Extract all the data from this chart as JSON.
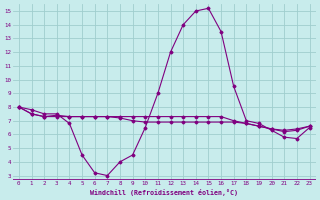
{
  "xlabel": "Windchill (Refroidissement éolien,°C)",
  "xlim": [
    -0.5,
    23.5
  ],
  "ylim": [
    2.7,
    15.5
  ],
  "yticks": [
    3,
    4,
    5,
    6,
    7,
    8,
    9,
    10,
    11,
    12,
    13,
    14,
    15
  ],
  "xticks": [
    0,
    1,
    2,
    3,
    4,
    5,
    6,
    7,
    8,
    9,
    10,
    11,
    12,
    13,
    14,
    15,
    16,
    17,
    18,
    19,
    20,
    21,
    22,
    23
  ],
  "bg_color": "#c8ecec",
  "line_color": "#800080",
  "grid_color": "#a0cece",
  "curve1_x": [
    0,
    1,
    2,
    3,
    4,
    5,
    6,
    7,
    8,
    9,
    10,
    11,
    12,
    13,
    14,
    15,
    16,
    17,
    18,
    19,
    20,
    21,
    22,
    23
  ],
  "curve1_y": [
    8.0,
    7.8,
    7.5,
    7.5,
    6.8,
    4.5,
    3.2,
    3.0,
    4.0,
    4.5,
    6.5,
    9.0,
    12.0,
    14.0,
    15.0,
    15.2,
    13.5,
    9.5,
    7.0,
    6.8,
    6.3,
    5.8,
    5.7,
    6.5
  ],
  "curve2_x": [
    0,
    1,
    2,
    3,
    4,
    5,
    6,
    7,
    8,
    9,
    10,
    11,
    12,
    13,
    14,
    15,
    16,
    17,
    18,
    19,
    20,
    21,
    22,
    23
  ],
  "curve2_y": [
    8.0,
    7.5,
    7.3,
    7.3,
    7.3,
    7.3,
    7.3,
    7.3,
    7.3,
    7.3,
    7.3,
    7.3,
    7.3,
    7.3,
    7.3,
    7.3,
    7.3,
    7.0,
    6.8,
    6.6,
    6.4,
    6.3,
    6.4,
    6.6
  ],
  "curve3_x": [
    0,
    1,
    2,
    3,
    4,
    5,
    6,
    7,
    8,
    9,
    10,
    11,
    12,
    13,
    14,
    15,
    16,
    17,
    18,
    19,
    20,
    21,
    22,
    23
  ],
  "curve3_y": [
    8.0,
    7.5,
    7.3,
    7.4,
    7.3,
    7.3,
    7.3,
    7.3,
    7.2,
    7.0,
    6.9,
    6.9,
    6.9,
    6.9,
    6.9,
    6.9,
    6.9,
    6.9,
    6.8,
    6.6,
    6.4,
    6.2,
    6.3,
    6.6
  ]
}
